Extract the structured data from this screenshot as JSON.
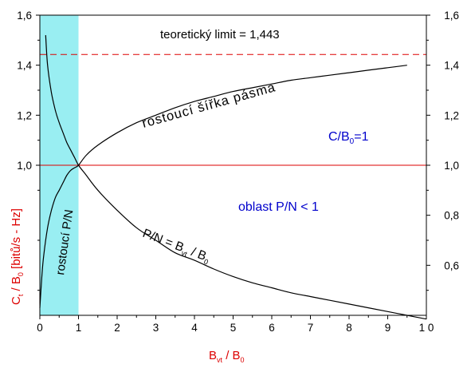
{
  "chart_data": {
    "type": "line",
    "title": "",
    "xlabel": {
      "main": "B",
      "sub": "vt",
      "mid": " / B",
      "sub2": "0"
    },
    "ylabel": {
      "main": "C",
      "sub": "t",
      "mid": " / B",
      "sub2": "0",
      "tail": " [bitů/s - Hz]"
    },
    "xlim": [
      0,
      10
    ],
    "ylim": [
      0.4,
      1.6
    ],
    "x_ticks": [
      {
        "v": 0,
        "label": "0"
      },
      {
        "v": 1,
        "label": "1"
      },
      {
        "v": 2,
        "label": "2"
      },
      {
        "v": 3,
        "label": "3"
      },
      {
        "v": 4,
        "label": "4"
      },
      {
        "v": 5,
        "label": "5"
      },
      {
        "v": 6,
        "label": "6"
      },
      {
        "v": 7,
        "label": "7"
      },
      {
        "v": 8,
        "label": "8"
      },
      {
        "v": 9,
        "label": "9"
      },
      {
        "v": 10,
        "label": "1 0"
      }
    ],
    "y_ticks_left": [
      {
        "v": 1.6,
        "label": "1,6"
      },
      {
        "v": 1.4,
        "label": "1,4"
      },
      {
        "v": 1.2,
        "label": "1,2"
      },
      {
        "v": 1.0,
        "label": "1,0"
      }
    ],
    "y_ticks_right": [
      {
        "v": 1.6,
        "label": "1,6"
      },
      {
        "v": 1.4,
        "label": "1,4"
      },
      {
        "v": 1.2,
        "label": "1,2"
      },
      {
        "v": 1.0,
        "label": "1,0"
      },
      {
        "v": 0.8,
        "label": "0,8"
      },
      {
        "v": 0.6,
        "label": "0,6"
      }
    ],
    "shaded_region": {
      "x_from": 0,
      "x_to": 1,
      "color": "#99eef2"
    },
    "reference_lines": [
      {
        "y": 1.0,
        "style": "solid",
        "color": "#dd0000"
      },
      {
        "y": 1.443,
        "style": "dashed",
        "color": "#dd0000"
      }
    ],
    "series": [
      {
        "color": "#000000",
        "x": [
          0,
          0.05,
          0.1,
          0.2,
          0.3,
          0.4,
          0.5,
          0.6,
          0.7,
          0.8,
          0.9,
          1.0,
          1.2,
          1.5,
          2,
          2.5,
          3,
          3.5,
          4,
          4.5,
          5,
          5.5,
          6,
          6.5,
          7,
          7.5,
          8,
          8.5,
          9,
          9.5
        ],
        "values": [
          0.43,
          0.55,
          0.64,
          0.75,
          0.82,
          0.87,
          0.9,
          0.93,
          0.96,
          0.98,
          0.99,
          1.0,
          1.04,
          1.08,
          1.13,
          1.17,
          1.2,
          1.23,
          1.255,
          1.275,
          1.295,
          1.31,
          1.325,
          1.34,
          1.35,
          1.36,
          1.37,
          1.38,
          1.39,
          1.4
        ]
      },
      {
        "color": "#000000",
        "x": [
          0.15,
          0.2,
          0.3,
          0.4,
          0.5,
          0.6,
          0.7,
          0.8,
          0.9,
          1.0,
          1.2,
          1.5,
          2,
          2.5,
          3,
          3.5,
          4,
          4.5,
          5,
          5.5,
          6,
          6.5,
          7,
          7.5,
          8,
          8.5,
          9,
          9.5,
          10
        ],
        "values": [
          1.52,
          1.4,
          1.29,
          1.22,
          1.17,
          1.13,
          1.09,
          1.06,
          1.03,
          1.0,
          0.96,
          0.9,
          0.82,
          0.75,
          0.7,
          0.65,
          0.62,
          0.585,
          0.555,
          0.53,
          0.51,
          0.49,
          0.475,
          0.46,
          0.445,
          0.43,
          0.415,
          0.4,
          0.385
        ]
      }
    ],
    "annotations": {
      "limit": "teoretický limit = 1,443",
      "bandwidth": "rostoucí  šířka  pásma",
      "cb_main": "C/B",
      "cb_sub": "0",
      "cb_tail": "=1",
      "region": "oblast P/N < 1",
      "rising_pn": "rostoucí P/N",
      "pn_main": "P/N  =  B",
      "pn_sub": "vt",
      "pn_mid": "  /  B",
      "pn_sub2": "0"
    },
    "grid": false,
    "legend": "none"
  }
}
